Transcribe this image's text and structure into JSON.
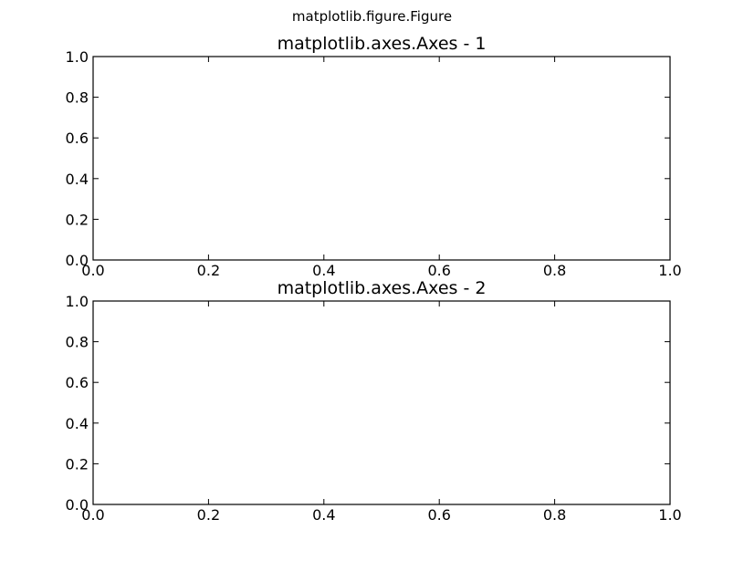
{
  "figure": {
    "suptitle": "matplotlib.figure.Figure"
  },
  "chart_data": [
    {
      "type": "line",
      "title": "matplotlib.axes.Axes - 1",
      "xlabel": "",
      "ylabel": "",
      "xlim": [
        0.0,
        1.0
      ],
      "ylim": [
        0.0,
        1.0
      ],
      "xticks": [
        "0.0",
        "0.2",
        "0.4",
        "0.6",
        "0.8",
        "1.0"
      ],
      "yticks": [
        "0.0",
        "0.2",
        "0.4",
        "0.6",
        "0.8",
        "1.0"
      ],
      "grid": false,
      "series": []
    },
    {
      "type": "line",
      "title": "matplotlib.axes.Axes - 2",
      "xlabel": "",
      "ylabel": "",
      "xlim": [
        0.0,
        1.0
      ],
      "ylim": [
        0.0,
        1.0
      ],
      "xticks": [
        "0.0",
        "0.2",
        "0.4",
        "0.6",
        "0.8",
        "1.0"
      ],
      "yticks": [
        "0.0",
        "0.2",
        "0.4",
        "0.6",
        "0.8",
        "1.0"
      ],
      "grid": false,
      "series": []
    }
  ]
}
